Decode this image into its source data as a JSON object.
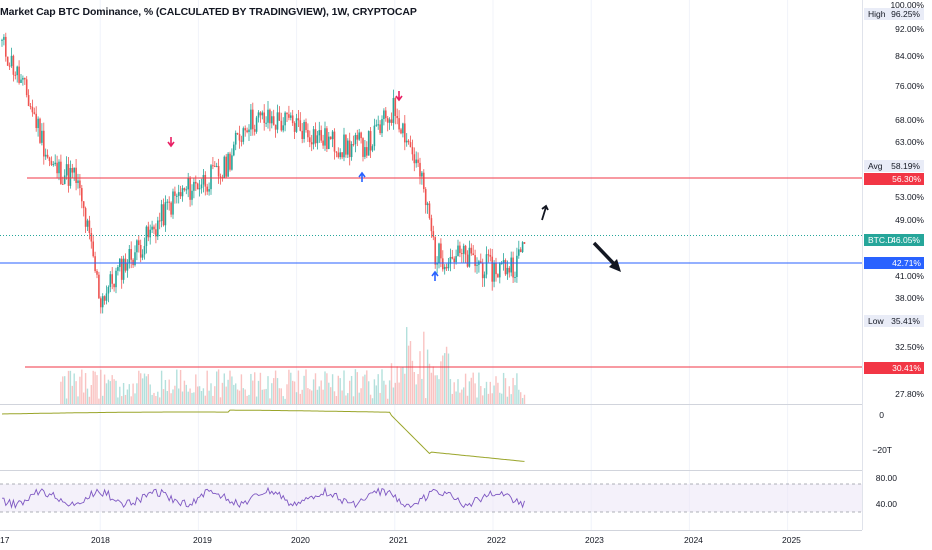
{
  "header": {
    "title": "Market Cap BTC Dominance, % (CALCULATED BY TRADINGVIEW), 1W, CRYPTOCAP"
  },
  "price_axis": {
    "labels": [
      "100.00%",
      "92.00%",
      "84.00%",
      "76.00%",
      "68.00%",
      "63.00%",
      "53.00%",
      "49.00%",
      "41.00%",
      "38.00%",
      "32.50%",
      "27.80%"
    ]
  },
  "markers": {
    "high": {
      "label": "High",
      "value": "96.25%"
    },
    "avg": {
      "label": "Avg",
      "value": "58.19%"
    },
    "low": {
      "label": "Low",
      "value": "35.41%"
    },
    "last": {
      "label": "BTC.D",
      "value": "46.05%"
    },
    "line_upper": {
      "value": "56.30%"
    },
    "line_blue": {
      "value": "42.71%"
    },
    "line_lower": {
      "value": "30.41%"
    }
  },
  "indicator_axis": {
    "labels": [
      "0",
      "−20T"
    ]
  },
  "rsi_axis": {
    "labels": [
      "80.00",
      "40.00"
    ]
  },
  "time_axis": {
    "labels": [
      "17",
      "2018",
      "2019",
      "2020",
      "2021",
      "2022",
      "2023",
      "2024",
      "2025"
    ]
  },
  "colors": {
    "up": "#26a69a",
    "down": "#ef5350",
    "last_line": "#26a69a",
    "upper_line": "#f23645",
    "blue_line": "#2962ff",
    "indicator_line": "#9aa52a",
    "rsi_line": "#7e57c2",
    "rsi_band": "#ede7f6"
  },
  "chart_data": {
    "type": "line",
    "ylim": [
      27.8,
      100
    ],
    "x_range": [
      "2017-01",
      "2025-12"
    ],
    "close_approx": [
      [
        "2017-01",
        88
      ],
      [
        "2017-04",
        74
      ],
      [
        "2017-07",
        58
      ],
      [
        "2017-10",
        56
      ],
      [
        "2018-01",
        37
      ],
      [
        "2018-04",
        42
      ],
      [
        "2018-07",
        46
      ],
      [
        "2018-10",
        52
      ],
      [
        "2019-01",
        55
      ],
      [
        "2019-04",
        57
      ],
      [
        "2019-07",
        68
      ],
      [
        "2019-10",
        68
      ],
      [
        "2020-01",
        67
      ],
      [
        "2020-04",
        64
      ],
      [
        "2020-07",
        62
      ],
      [
        "2020-10",
        63
      ],
      [
        "2021-01",
        71
      ],
      [
        "2021-04",
        57
      ],
      [
        "2021-06",
        43
      ],
      [
        "2021-09",
        43
      ],
      [
        "2022-01",
        41
      ],
      [
        "2022-04",
        42
      ],
      [
        "2022-05",
        46
      ]
    ],
    "annotations": [
      "up-arrow",
      "down-right-arrow"
    ]
  }
}
